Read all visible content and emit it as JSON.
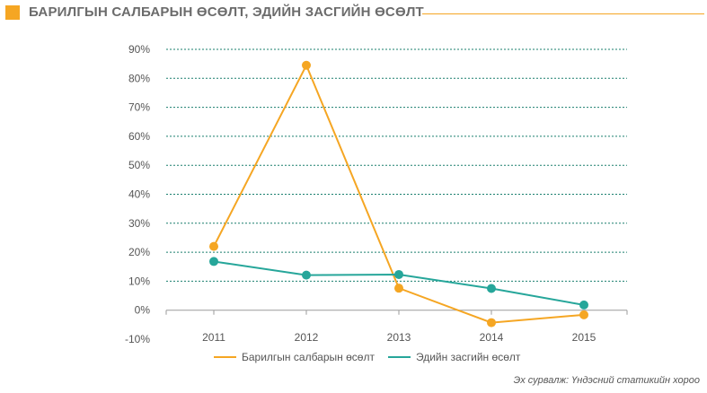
{
  "header": {
    "title": "БАРИЛГЫН САЛБАРЫН ӨСӨЛТ,  ЭДИЙН ЗАСГИЙН ӨСӨЛТ"
  },
  "source": "Эх сурвалж: Үндэсний статикийн хороо",
  "colors": {
    "accent": "#f5a623",
    "series_orange": "#f5a623",
    "series_teal": "#26a69a",
    "grid": "#1a7f6e"
  },
  "chart_data": {
    "type": "line",
    "x": [
      "2011",
      "2012",
      "2013",
      "2014",
      "2015"
    ],
    "y_ticks": [
      "90%",
      "80%",
      "70%",
      "60%",
      "50%",
      "40%",
      "30%",
      "20%",
      "10%",
      "0%",
      "-10%"
    ],
    "ylim": [
      -10,
      90
    ],
    "grid": true,
    "legend_position": "bottom",
    "series": [
      {
        "name": "Барилгын салбарын өсөлт",
        "color": "#f5a623",
        "values": [
          22,
          84.5,
          7.6,
          -4.3,
          -1.6
        ]
      },
      {
        "name": "Эдийн засгийн өсөлт",
        "color": "#26a69a",
        "values": [
          16.8,
          12.1,
          12.3,
          7.5,
          1.8
        ]
      }
    ]
  }
}
